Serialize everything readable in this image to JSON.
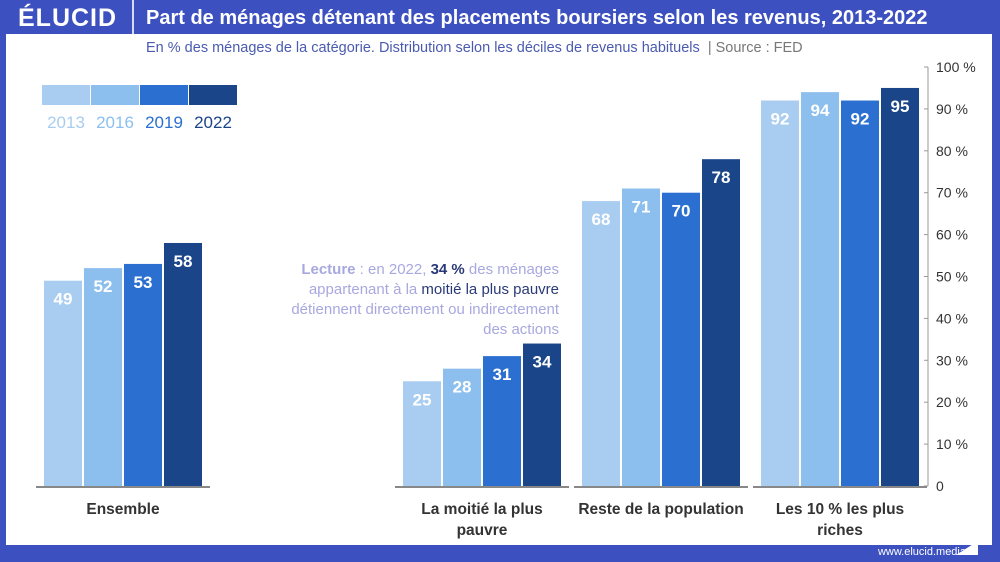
{
  "header": {
    "logo": "ÉLUCID",
    "title": "Part de ménages détenant des placements boursiers selon les revenus, 2013-2022"
  },
  "subtitle": "En % des ménages de la catégorie. Distribution selon les déciles de revenus habituels",
  "source": "|  Source : FED",
  "footer": "www.elucid.media",
  "note": {
    "lead": "Lecture",
    "p1": " : en 2022, ",
    "value": "34 %",
    "p2": " des ménages appartenant à la ",
    "group": "moitié la plus pauvre",
    "p3": " détiennent directement ou indirectement des actions"
  },
  "colors": {
    "frame": "#3c50c0",
    "s2013": "#a9cdf0",
    "s2016": "#8cbfee",
    "s2019": "#2b6fd0",
    "s2022": "#1a4588"
  },
  "chart_data": {
    "type": "bar",
    "categories": [
      "Ensemble",
      "La moitié la plus pauvre",
      "Reste de la population",
      "Les 10 % les plus riches"
    ],
    "category_lines": [
      [
        "Ensemble"
      ],
      [
        "La moitié la plus",
        "pauvre"
      ],
      [
        "Reste de la population"
      ],
      [
        "Les 10 % les plus",
        "riches"
      ]
    ],
    "series": [
      {
        "name": "2013",
        "color": "#a9cdf0",
        "values": [
          49,
          25,
          68,
          92
        ]
      },
      {
        "name": "2016",
        "color": "#8cbfee",
        "values": [
          52,
          28,
          71,
          94
        ]
      },
      {
        "name": "2019",
        "color": "#2b6fd0",
        "values": [
          53,
          31,
          70,
          92
        ]
      },
      {
        "name": "2022",
        "color": "#1a4588",
        "values": [
          58,
          34,
          78,
          95
        ]
      }
    ],
    "ylim": [
      0,
      100
    ],
    "yticks": [
      "0",
      "10 %",
      "20 %",
      "30 %",
      "40 %",
      "50 %",
      "60 %",
      "70 %",
      "80 %",
      "90 %",
      "100 %"
    ],
    "grid": false,
    "legend": "top-left"
  }
}
